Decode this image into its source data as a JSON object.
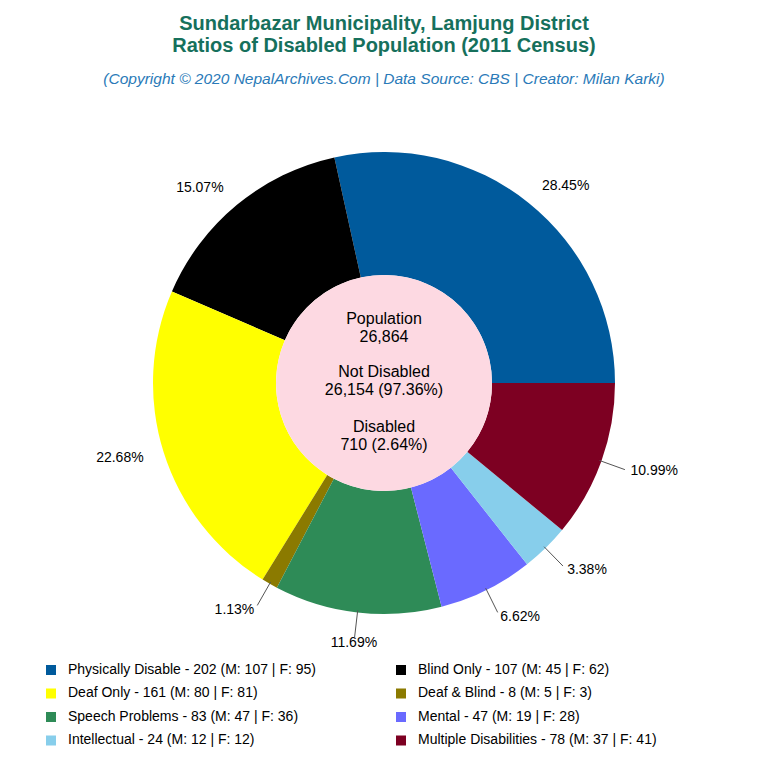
{
  "chart_data": {
    "type": "pie",
    "title": [
      "Sundarbazar Municipality, Lamjung District",
      "Ratios of Disabled Population (2011 Census)"
    ],
    "subtitle": "(Copyright © 2020 NepalArchives.Com | Data Source: CBS | Creator: Milan Karki)",
    "annotations": [
      "Population",
      "26,864",
      "Not Disabled",
      "26,154 (97.36%)",
      "Disabled",
      "710 (2.64%)"
    ],
    "categories": [
      "Physically Disable - 202 (M: 107 | F: 95)",
      "Blind Only - 107 (M: 45 | F: 62)",
      "Deaf Only - 161 (M: 80 | F: 81)",
      "Deaf & Blind - 8 (M: 5 | F: 3)",
      "Speech Problems - 83 (M: 47 | F: 36)",
      "Mental - 47 (M: 19 | F: 28)",
      "Intellectual - 24 (M: 12 | F: 12)",
      "Multiple Disabilities - 78 (M: 37 | F: 41)"
    ],
    "values": [
      28.45,
      15.07,
      22.68,
      1.13,
      11.69,
      6.62,
      3.38,
      10.99
    ],
    "value_labels": [
      "28.45%",
      "15.07%",
      "22.68%",
      "1.13%",
      "11.69%",
      "6.62%",
      "3.38%",
      "10.99%"
    ],
    "colors": [
      "#005a9c",
      "#000000",
      "#ffff00",
      "#8b7a00",
      "#2e8b57",
      "#6a6aff",
      "#87ceeb",
      "#7d0022"
    ],
    "data_labels": true,
    "legend": "bottom"
  }
}
